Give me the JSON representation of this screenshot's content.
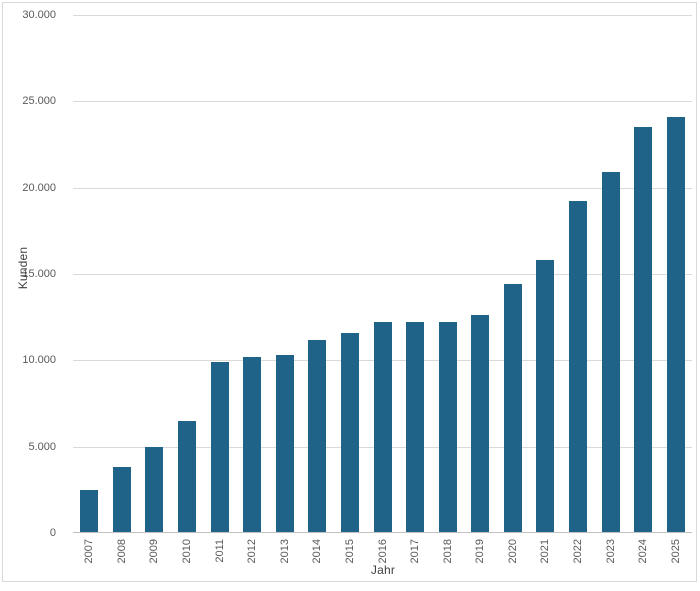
{
  "chart_data": {
    "type": "bar",
    "title": "",
    "categories": [
      "2007",
      "2008",
      "2009",
      "2010",
      "2011",
      "2012",
      "2013",
      "2014",
      "2015",
      "2016",
      "2017",
      "2018",
      "2019",
      "2020",
      "2021",
      "2022",
      "2023",
      "2024",
      "2025"
    ],
    "values": [
      2500,
      3800,
      5000,
      6500,
      9900,
      10200,
      10300,
      11200,
      11600,
      12200,
      12200,
      12200,
      12600,
      14400,
      15800,
      19200,
      20900,
      23500,
      24100
    ],
    "xlabel": "Jahr",
    "ylabel": "Kunden",
    "ylim": [
      0,
      30000
    ],
    "ytick_step": 5000,
    "ytick_labels": [
      "0",
      "5.000",
      "10.000",
      "15.000",
      "20.000",
      "25.000",
      "30.000"
    ],
    "grid": true,
    "legend": "none",
    "bar_color": "#1f6488",
    "gridline_color": "#d9d9d9",
    "axis_line_color": "#bfbfbf",
    "tick_label_color": "#595959",
    "axis_title_color": "#404040",
    "frame_border_color": "#d9d9d9",
    "background_color": "#ffffff"
  }
}
